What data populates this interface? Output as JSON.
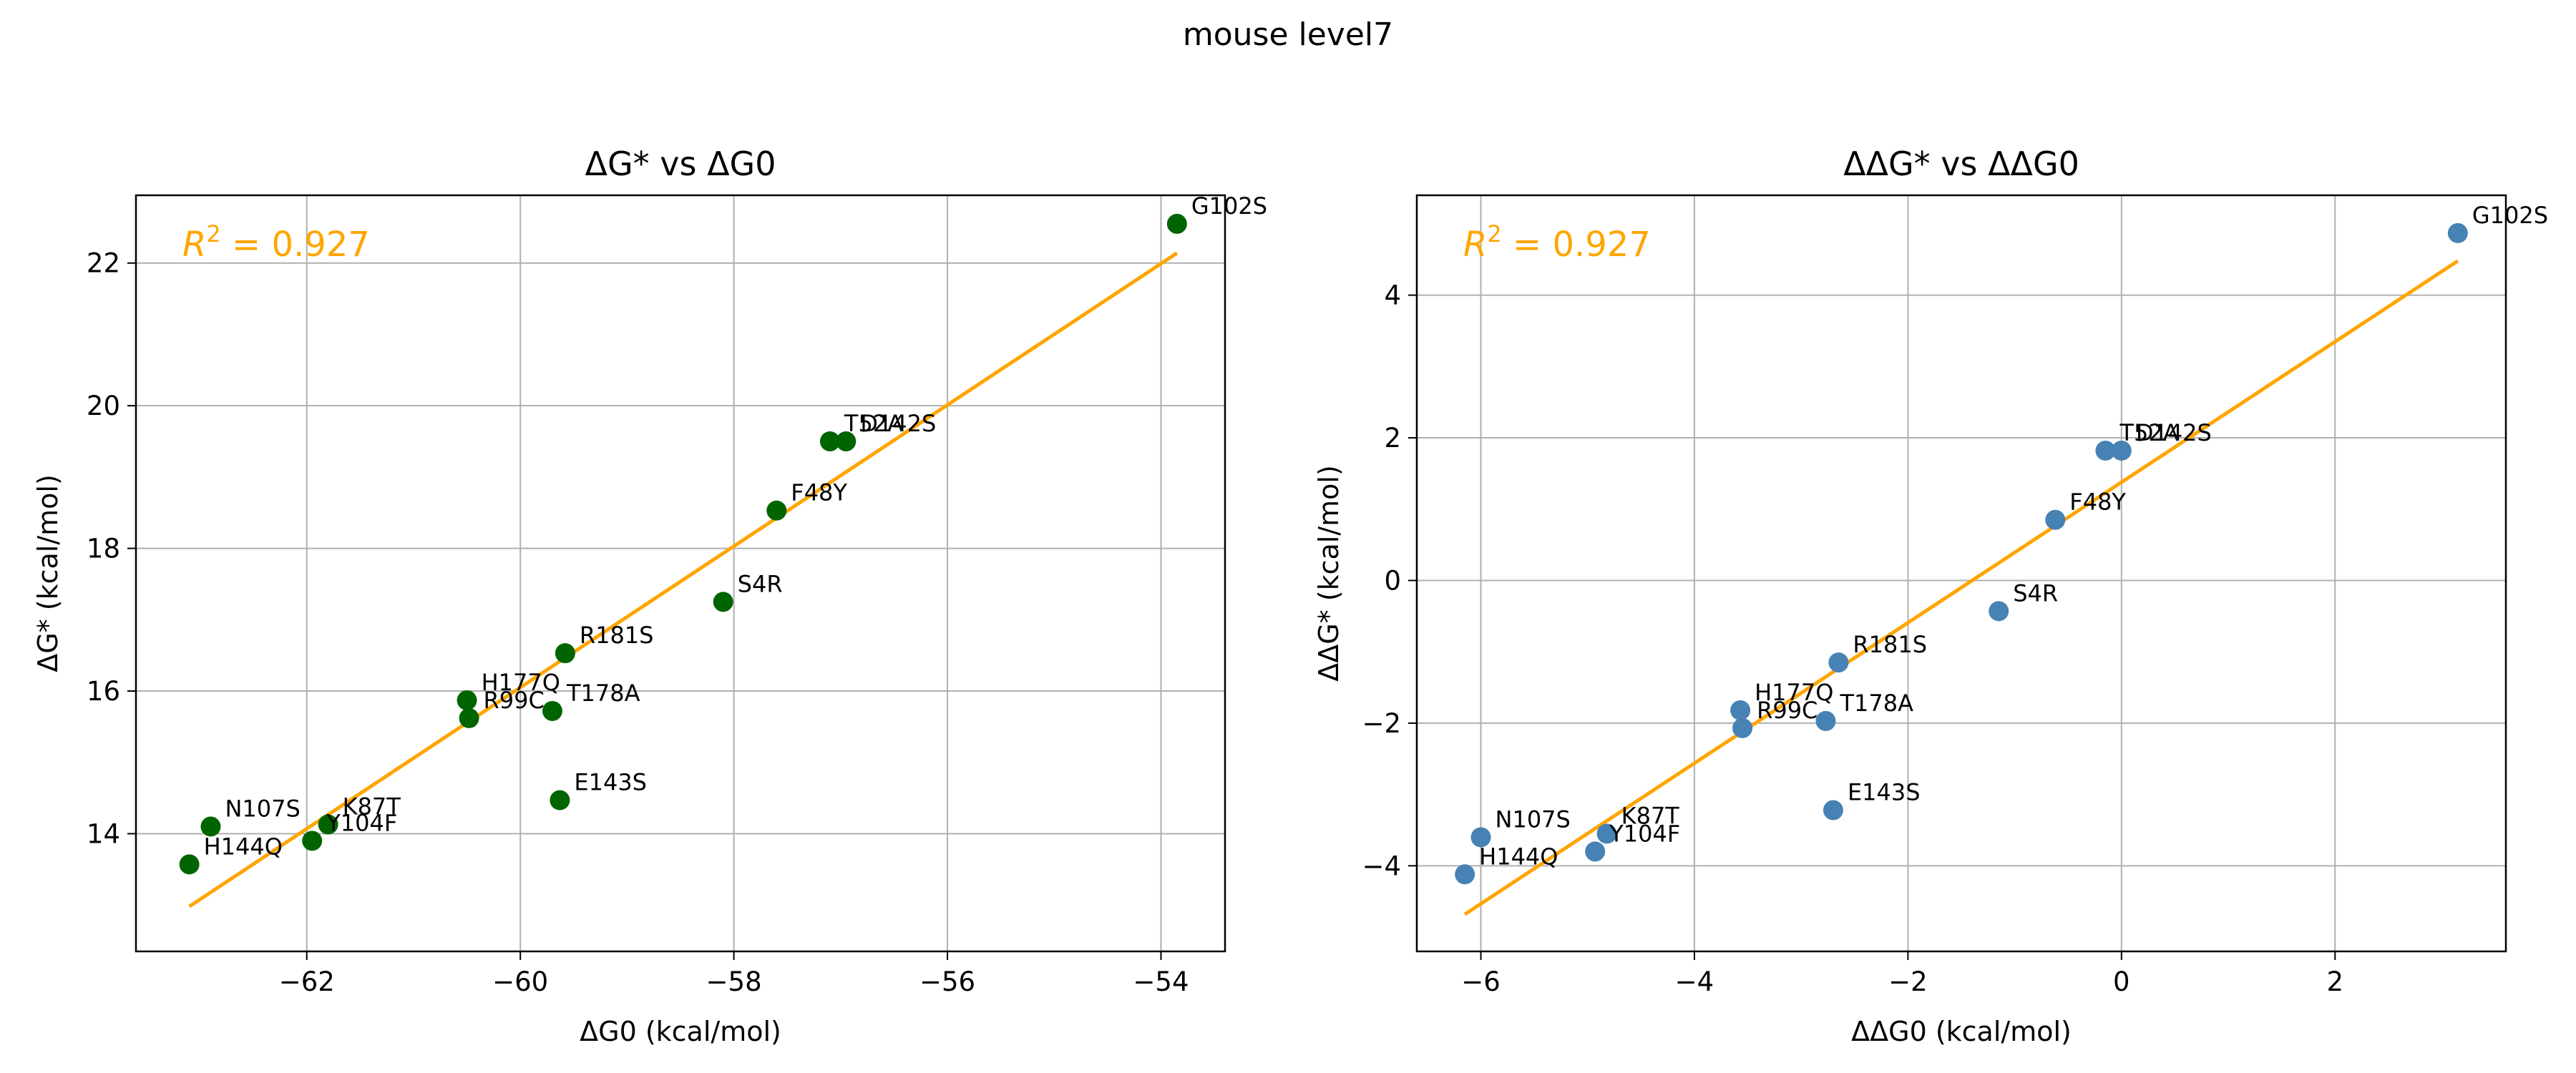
{
  "figure": {
    "suptitle": "mouse level7"
  },
  "chart_data": [
    {
      "type": "scatter",
      "title": "ΔG* vs ΔG0",
      "xlabel": "ΔG0 (kcal/mol)",
      "ylabel": "ΔG* (kcal/mol)",
      "xlim": [
        -63.6,
        -53.4
      ],
      "ylim": [
        12.35,
        22.95
      ],
      "xticks": [
        -62,
        -60,
        -58,
        -56,
        -54
      ],
      "yticks": [
        14,
        16,
        18,
        20,
        22
      ],
      "xtick_labels": [
        "−62",
        "−60",
        "−58",
        "−56",
        "−54"
      ],
      "ytick_labels": [
        "14",
        "16",
        "18",
        "20",
        "22"
      ],
      "grid": true,
      "point_color": "#006400",
      "fit_color": "#FFA500",
      "annotation": {
        "prefix": "R",
        "sup": "2",
        "suffix": " = 0.927"
      },
      "points": [
        {
          "label": "G102S",
          "x": -53.85,
          "y": 22.55
        },
        {
          "label": "T52A",
          "x": -57.1,
          "y": 19.5
        },
        {
          "label": "D142S",
          "x": -56.95,
          "y": 19.5
        },
        {
          "label": "F48Y",
          "x": -57.6,
          "y": 18.53
        },
        {
          "label": "S4R",
          "x": -58.1,
          "y": 17.25
        },
        {
          "label": "R181S",
          "x": -59.58,
          "y": 16.53
        },
        {
          "label": "H177Q",
          "x": -60.5,
          "y": 15.87
        },
        {
          "label": "R99C",
          "x": -60.48,
          "y": 15.62
        },
        {
          "label": "T178A",
          "x": -59.7,
          "y": 15.72
        },
        {
          "label": "E143S",
          "x": -59.63,
          "y": 14.47
        },
        {
          "label": "N107S",
          "x": -62.9,
          "y": 14.1
        },
        {
          "label": "K87T",
          "x": -61.8,
          "y": 14.13
        },
        {
          "label": "Y104F",
          "x": -61.95,
          "y": 13.9
        },
        {
          "label": "H144Q",
          "x": -63.1,
          "y": 13.57
        }
      ],
      "fit_line": {
        "x": [
          -63.1,
          -53.85
        ],
        "y": [
          12.98,
          22.14
        ]
      }
    },
    {
      "type": "scatter",
      "title": "ΔΔG* vs ΔΔG0",
      "xlabel": "ΔΔG0 (kcal/mol)",
      "ylabel": "ΔΔG* (kcal/mol)",
      "xlim": [
        -6.6,
        3.6
      ],
      "ylim": [
        -5.2,
        5.4
      ],
      "xticks": [
        -6,
        -4,
        -2,
        0,
        2
      ],
      "yticks": [
        -4,
        -2,
        0,
        2,
        4
      ],
      "xtick_labels": [
        "−6",
        "−4",
        "−2",
        "0",
        "2"
      ],
      "ytick_labels": [
        "−4",
        "−2",
        "0",
        "2",
        "4"
      ],
      "grid": true,
      "point_color": "#4682B4",
      "fit_color": "#FFA500",
      "annotation": {
        "prefix": "R",
        "sup": "2",
        "suffix": " = 0.927"
      },
      "points": [
        {
          "label": "G102S",
          "x": 3.15,
          "y": 4.87
        },
        {
          "label": "T52A",
          "x": -0.15,
          "y": 1.82
        },
        {
          "label": "D142S",
          "x": 0.0,
          "y": 1.82
        },
        {
          "label": "F48Y",
          "x": -0.62,
          "y": 0.85
        },
        {
          "label": "S4R",
          "x": -1.15,
          "y": -0.43
        },
        {
          "label": "R181S",
          "x": -2.65,
          "y": -1.15
        },
        {
          "label": "H177Q",
          "x": -3.57,
          "y": -1.82
        },
        {
          "label": "R99C",
          "x": -3.55,
          "y": -2.07
        },
        {
          "label": "T178A",
          "x": -2.77,
          "y": -1.97
        },
        {
          "label": "E143S",
          "x": -2.7,
          "y": -3.22
        },
        {
          "label": "N107S",
          "x": -6.0,
          "y": -3.6
        },
        {
          "label": "K87T",
          "x": -4.82,
          "y": -3.55
        },
        {
          "label": "Y104F",
          "x": -4.93,
          "y": -3.8
        },
        {
          "label": "H144Q",
          "x": -6.15,
          "y": -4.12
        }
      ],
      "fit_line": {
        "x": [
          -6.15,
          3.15
        ],
        "y": [
          -4.68,
          4.48
        ]
      }
    }
  ]
}
